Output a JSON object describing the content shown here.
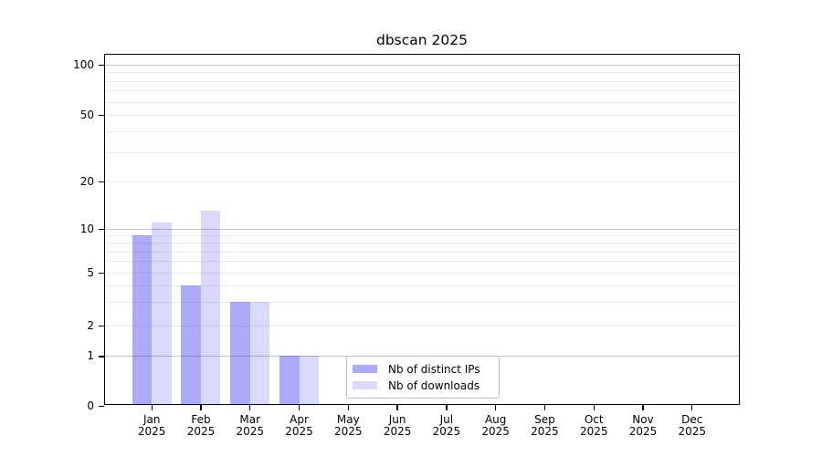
{
  "chart_data": {
    "type": "bar",
    "title": "dbscan 2025",
    "categories": [
      "Jan",
      "Feb",
      "Mar",
      "Apr",
      "May",
      "Jun",
      "Jul",
      "Aug",
      "Sep",
      "Oct",
      "Nov",
      "Dec"
    ],
    "category_year": "2025",
    "series": [
      {
        "name": "Nb of distinct IPs",
        "color": "#ababf7",
        "color_rgba": "rgba(0,0,230,0.33)",
        "values": [
          9,
          4,
          3,
          1,
          0,
          0,
          0,
          0,
          0,
          0,
          0,
          0
        ]
      },
      {
        "name": "Nb of downloads",
        "color": "#d9d9fb",
        "color_rgba": "rgba(0,0,230,0.15)",
        "values": [
          11,
          13,
          3,
          1,
          0,
          0,
          0,
          0,
          0,
          0,
          0,
          0
        ]
      }
    ],
    "xlabel": "",
    "ylabel": "",
    "y_axis": {
      "scale": "log-like (0 linear segment, log decades above 1)",
      "tick_labels": [
        "0",
        "1",
        "2",
        "5",
        "10",
        "20",
        "50",
        "100"
      ],
      "major_gridline_values": [
        1,
        10,
        100
      ],
      "minor_gridline_values": [
        2,
        3,
        4,
        6,
        7,
        8,
        9,
        5,
        20,
        30,
        40,
        60,
        70,
        80,
        90,
        50
      ],
      "ylim": [
        0,
        130
      ]
    },
    "legend": {
      "position": "lower center inside plot",
      "entries": [
        "Nb of distinct IPs",
        "Nb of downloads"
      ]
    },
    "grid": "on"
  },
  "colors": {
    "background": "#ffffff",
    "spine": "#000000",
    "grid_major": "#c3c3c3",
    "grid_minor": "#ebebeb",
    "text": "#000000",
    "legend_border": "#bdbdbd"
  }
}
